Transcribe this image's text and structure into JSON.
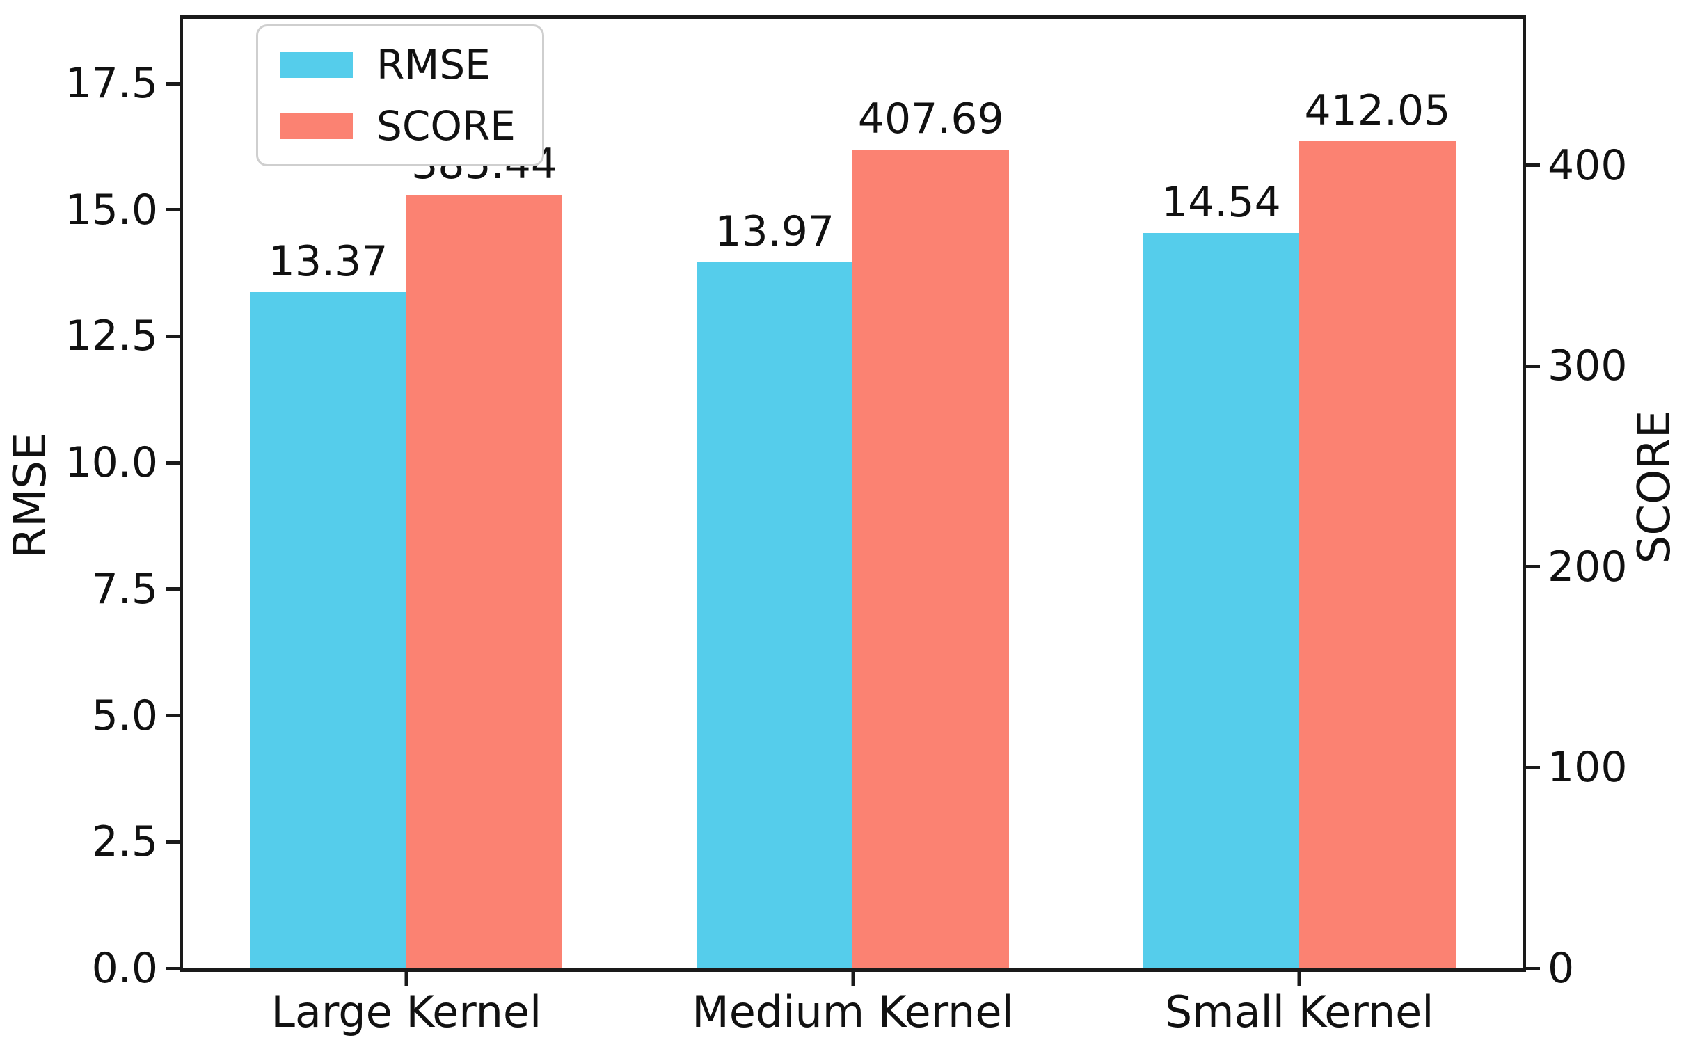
{
  "figure": {
    "background": "#ffffff",
    "spine_color": "#1a1a1a"
  },
  "chart_data": {
    "type": "bar",
    "categories": [
      "Large Kernel",
      "Medium Kernel",
      "Small Kernel"
    ],
    "series": [
      {
        "name": "RMSE",
        "axis": "left",
        "color": "#55CDEB",
        "values": [
          13.37,
          13.97,
          14.54
        ],
        "labels": [
          "13.37",
          "13.97",
          "14.54"
        ]
      },
      {
        "name": "SCORE",
        "axis": "right",
        "color": "#FB8272",
        "values": [
          385.44,
          407.69,
          412.05
        ],
        "labels": [
          "385.44",
          "407.69",
          "412.05"
        ]
      }
    ],
    "left_axis": {
      "label": "RMSE",
      "ticks": [
        0.0,
        2.5,
        5.0,
        7.5,
        10.0,
        12.5,
        15.0,
        17.5
      ],
      "tick_labels": [
        "0.0",
        "2.5",
        "5.0",
        "7.5",
        "10.0",
        "12.5",
        "15.0",
        "17.5"
      ],
      "min": 0,
      "max": 18.78
    },
    "right_axis": {
      "label": "SCORE",
      "ticks": [
        0,
        100,
        200,
        300,
        400
      ],
      "tick_labels": [
        "0",
        "100",
        "200",
        "300",
        "400"
      ],
      "min": 0,
      "max": 473
    },
    "legend": {
      "position": "upper-left",
      "entries": [
        "RMSE",
        "SCORE"
      ]
    },
    "grid": false,
    "bar_value_labels_shown": true
  }
}
